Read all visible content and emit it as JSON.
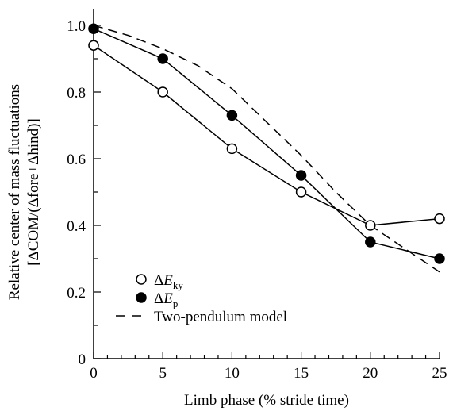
{
  "chart_data": {
    "type": "line",
    "title": "",
    "xlabel": "Limb phase (% stride time)",
    "ylabel": [
      "Relative center of mass fluctuations",
      "[ΔCOM/(Δfore+Δhind)]"
    ],
    "xlim": [
      0,
      25
    ],
    "ylim": [
      0,
      1.05
    ],
    "x_ticks": [
      0,
      5,
      10,
      15,
      20,
      25
    ],
    "y_ticks": [
      0,
      0.2,
      0.4,
      0.6,
      0.8,
      1.0
    ],
    "x_tick_labels": [
      "0",
      "5",
      "10",
      "15",
      "20",
      "25"
    ],
    "y_tick_labels": [
      "0",
      "0.2",
      "0.4",
      "0.6",
      "0.8",
      "1.0"
    ],
    "grid": false,
    "legend_position": "bottom-left",
    "series": [
      {
        "legend_symbol": "ΔE",
        "legend_subscript": "ky",
        "marker": "open-circle",
        "line_style": "solid",
        "x": [
          0,
          5,
          10,
          15,
          20,
          25
        ],
        "y": [
          0.94,
          0.8,
          0.63,
          0.5,
          0.4,
          0.42
        ]
      },
      {
        "legend_symbol": "ΔE",
        "legend_subscript": "p",
        "marker": "filled-circle",
        "line_style": "solid",
        "x": [
          0,
          5,
          10,
          15,
          20,
          25
        ],
        "y": [
          0.99,
          0.9,
          0.73,
          0.55,
          0.35,
          0.3
        ]
      },
      {
        "name": "Two-pendulum model",
        "marker": "none",
        "line_style": "dashed",
        "x": [
          0,
          2.5,
          5,
          7.5,
          10,
          12.5,
          15,
          17.5,
          20,
          22.5,
          25
        ],
        "y": [
          1.0,
          0.97,
          0.93,
          0.88,
          0.81,
          0.71,
          0.61,
          0.5,
          0.4,
          0.33,
          0.26
        ]
      }
    ],
    "colors": {
      "ink": "#000000",
      "background": "#ffffff"
    }
  }
}
